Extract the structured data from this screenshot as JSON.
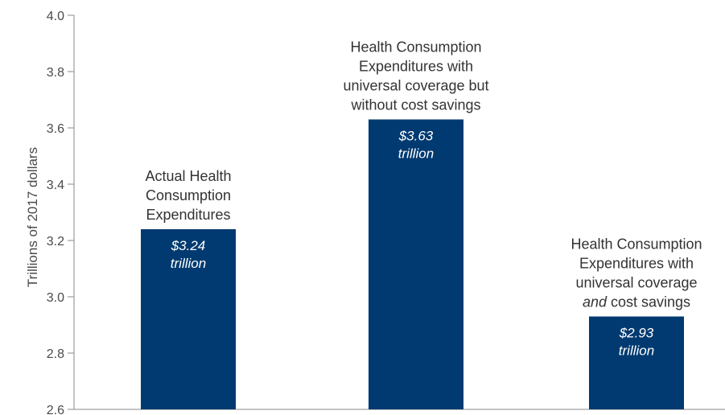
{
  "chart_data": {
    "type": "bar",
    "title": "",
    "xlabel": "",
    "ylabel": "Trillions of 2017 dollars",
    "ylim": [
      2.6,
      4.0
    ],
    "yticks": [
      "2.6",
      "2.8",
      "3.0",
      "3.2",
      "3.4",
      "3.6",
      "3.8",
      "4.0"
    ],
    "grid": false,
    "bar_color": "#003a70",
    "categories": [
      {
        "label_lines": [
          [
            {
              "text": "Actual Health",
              "italic": false
            }
          ],
          [
            {
              "text": "Consumption",
              "italic": false
            }
          ],
          [
            {
              "text": "Expenditures",
              "italic": false
            }
          ]
        ]
      },
      {
        "label_lines": [
          [
            {
              "text": "Health Consumption",
              "italic": false
            }
          ],
          [
            {
              "text": "Expenditures with",
              "italic": false
            }
          ],
          [
            {
              "text": "universal coverage but",
              "italic": false
            }
          ],
          [
            {
              "text": "without cost savings",
              "italic": false
            }
          ]
        ]
      },
      {
        "label_lines": [
          [
            {
              "text": "Health Consumption",
              "italic": false
            }
          ],
          [
            {
              "text": "Expenditures with",
              "italic": false
            }
          ],
          [
            {
              "text": "universal coverage",
              "italic": false
            }
          ],
          [
            {
              "text": "and",
              "italic": true
            },
            {
              "text": " cost savings",
              "italic": false
            }
          ]
        ]
      }
    ],
    "values": [
      3.24,
      3.63,
      2.93
    ],
    "data_labels": [
      [
        "$3.24",
        "trillion"
      ],
      [
        "$3.63",
        "trillion"
      ],
      [
        "$2.93",
        "trillion"
      ]
    ]
  }
}
